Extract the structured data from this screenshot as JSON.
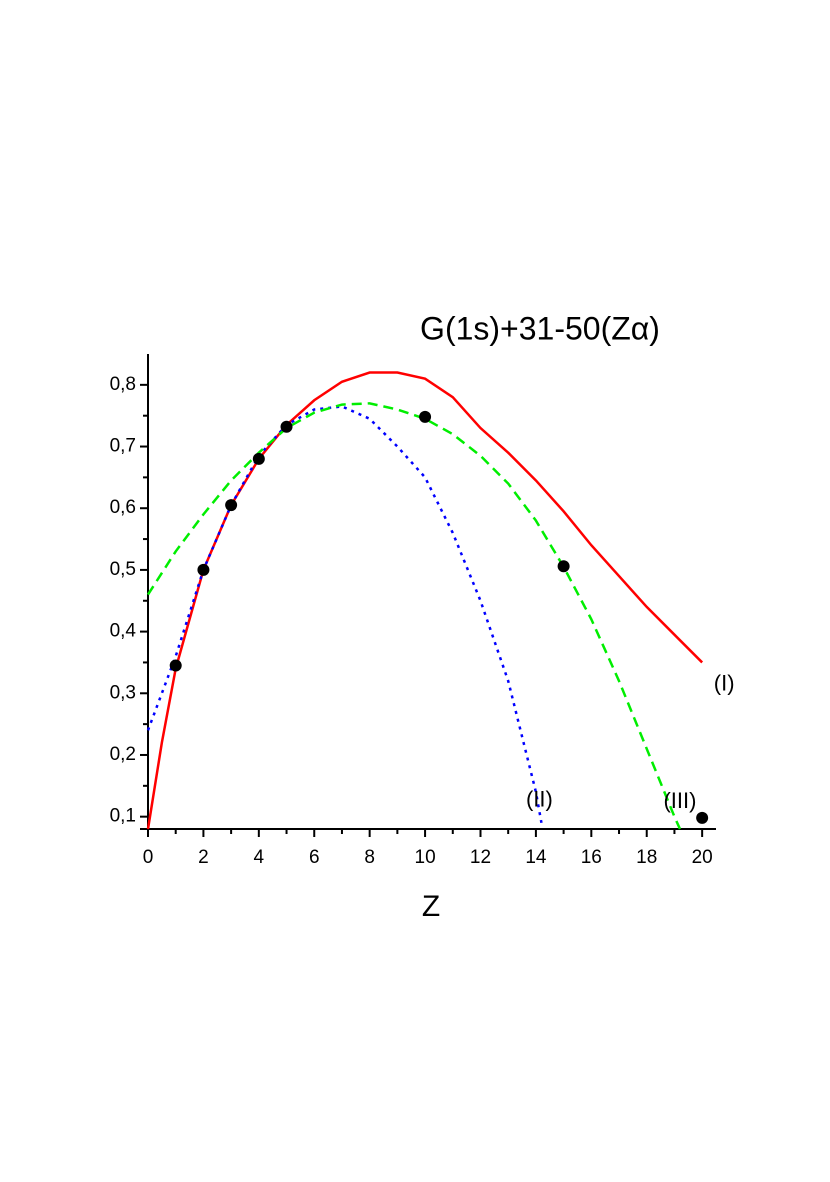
{
  "chart_data": {
    "type": "line",
    "title": "G(1s)+31-50(Zα)",
    "x_label": "Z",
    "xlim": [
      0,
      20.5
    ],
    "ylim": [
      0.08,
      0.85
    ],
    "xticks": [
      0,
      2,
      4,
      6,
      8,
      10,
      12,
      14,
      16,
      18,
      20
    ],
    "yticks": [
      {
        "value": 0.1,
        "label": "0,1"
      },
      {
        "value": 0.2,
        "label": "0,2"
      },
      {
        "value": 0.3,
        "label": "0,3"
      },
      {
        "value": 0.4,
        "label": "0,4"
      },
      {
        "value": 0.5,
        "label": "0,5"
      },
      {
        "value": 0.6,
        "label": "0,6"
      },
      {
        "value": 0.7,
        "label": "0,7"
      },
      {
        "value": 0.8,
        "label": "0,8"
      }
    ],
    "series": [
      {
        "name": "(I)",
        "type": "line",
        "dash": "solid",
        "color": "#ff0000",
        "x": [
          0,
          0.5,
          1,
          2,
          3,
          4,
          5,
          6,
          7,
          8,
          9,
          10,
          11,
          12,
          13,
          14,
          15,
          16,
          17,
          18,
          19,
          20
        ],
        "values": [
          0.08,
          0.22,
          0.34,
          0.5,
          0.605,
          0.68,
          0.735,
          0.775,
          0.805,
          0.82,
          0.82,
          0.81,
          0.78,
          0.73,
          0.69,
          0.645,
          0.595,
          0.54,
          0.49,
          0.44,
          0.395,
          0.35
        ]
      },
      {
        "name": "(II)",
        "type": "line",
        "dash": "dotted",
        "color": "#0000ff",
        "x": [
          0,
          1,
          2,
          3,
          4,
          5,
          6,
          7,
          8,
          9,
          10,
          11,
          12,
          13,
          14,
          14.2
        ],
        "values": [
          0.24,
          0.36,
          0.5,
          0.605,
          0.685,
          0.735,
          0.76,
          0.765,
          0.745,
          0.7,
          0.65,
          0.56,
          0.45,
          0.32,
          0.14,
          0.09
        ]
      },
      {
        "name": "(III)",
        "type": "line",
        "dash": "dashed",
        "color": "#00ee00",
        "x": [
          0,
          1,
          2,
          3,
          4,
          5,
          6,
          7,
          8,
          9,
          10,
          11,
          12,
          13,
          14,
          15,
          16,
          17,
          18,
          19,
          19.2
        ],
        "values": [
          0.46,
          0.53,
          0.59,
          0.645,
          0.69,
          0.73,
          0.755,
          0.768,
          0.77,
          0.76,
          0.745,
          0.72,
          0.685,
          0.64,
          0.58,
          0.505,
          0.42,
          0.32,
          0.21,
          0.1,
          0.08
        ]
      },
      {
        "type": "scatter",
        "color": "#000000",
        "x": [
          1,
          2,
          3,
          4,
          5,
          10,
          15,
          20
        ],
        "values": [
          0.345,
          0.5,
          0.605,
          0.68,
          0.732,
          0.748,
          0.506,
          0.098
        ]
      }
    ]
  }
}
